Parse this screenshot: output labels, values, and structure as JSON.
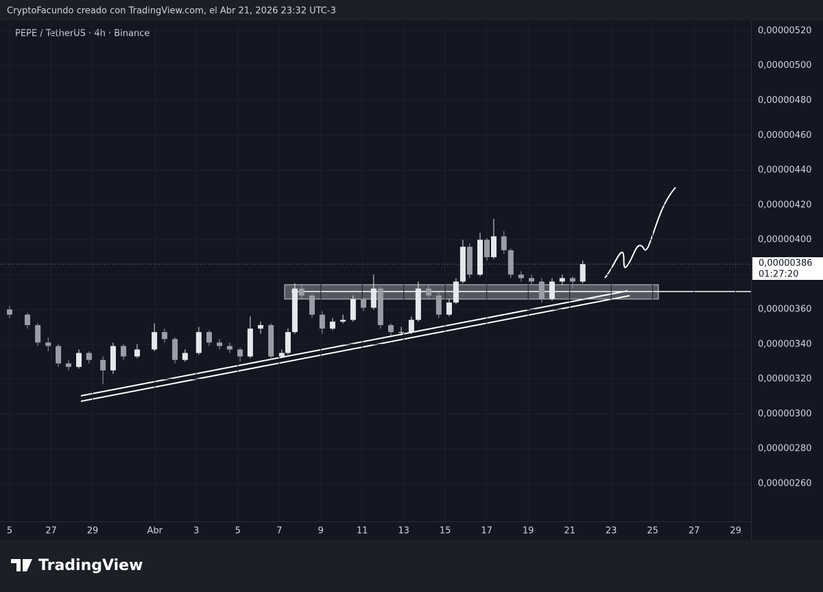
{
  "header": "CryptoFacundo creado con TradingView.com, el Abr 21, 2026 23:32 UTC-3",
  "brand": "TradingView",
  "chart_data": {
    "type": "candlestick",
    "title": "PEPE / TetherUS · 4h · Binance",
    "x": [
      0.0,
      0.86,
      1.36,
      1.86,
      2.35,
      2.84,
      3.34,
      3.83,
      4.5,
      4.99,
      5.49,
      6.15,
      6.98,
      7.47,
      7.97,
      8.46,
      9.12,
      9.62,
      10.12,
      10.61,
      11.11,
      11.6,
      12.1,
      12.6,
      13.12,
      13.42,
      13.75,
      14.08,
      14.58,
      15.07,
      15.57,
      16.07,
      16.56,
      17.06,
      17.55,
      17.88,
      18.38,
      18.88,
      19.37,
      19.7,
      20.2,
      20.69,
      21.19,
      21.52,
      21.85,
      22.18,
      22.68,
      23.01,
      23.34,
      23.83,
      24.16,
      24.66,
      25.16,
      25.65,
      26.15,
      26.64,
      27.14,
      27.63
    ],
    "open": [
      3.6e-06,
      3.57e-06,
      3.51e-06,
      3.41e-06,
      3.39e-06,
      3.29e-06,
      3.27e-06,
      3.35e-06,
      3.31e-06,
      3.25e-06,
      3.39e-06,
      3.33e-06,
      3.37e-06,
      3.47e-06,
      3.43e-06,
      3.31e-06,
      3.35e-06,
      3.47e-06,
      3.41e-06,
      3.39e-06,
      3.37e-06,
      3.33e-06,
      3.49e-06,
      3.51e-06,
      3.33e-06,
      3.35e-06,
      3.47e-06,
      3.72e-06,
      3.68e-06,
      3.57e-06,
      3.49e-06,
      3.53e-06,
      3.54e-06,
      3.66e-06,
      3.61e-06,
      3.72e-06,
      3.51e-06,
      3.47e-06,
      3.47e-06,
      3.54e-06,
      3.72e-06,
      3.68e-06,
      3.57e-06,
      3.64e-06,
      3.76e-06,
      3.96e-06,
      3.8e-06,
      4e-06,
      3.9e-06,
      4.02e-06,
      3.94e-06,
      3.8e-06,
      3.78e-06,
      3.76e-06,
      3.66e-06,
      3.76e-06,
      3.78e-06,
      3.76e-06
    ],
    "high": [
      3.62e-06,
      3.58e-06,
      3.52e-06,
      3.44e-06,
      3.4e-06,
      3.31e-06,
      3.37e-06,
      3.36e-06,
      3.33e-06,
      3.41e-06,
      3.4e-06,
      3.4e-06,
      3.52e-06,
      3.49e-06,
      3.44e-06,
      3.37e-06,
      3.5e-06,
      3.48e-06,
      3.43e-06,
      3.41e-06,
      3.38e-06,
      3.56e-06,
      3.53e-06,
      3.52e-06,
      3.37e-06,
      3.49e-06,
      3.75e-06,
      3.74e-06,
      3.69e-06,
      3.59e-06,
      3.55e-06,
      3.57e-06,
      3.68e-06,
      3.67e-06,
      3.8e-06,
      3.73e-06,
      3.52e-06,
      3.5e-06,
      3.56e-06,
      3.76e-06,
      3.74e-06,
      3.7e-06,
      3.66e-06,
      3.78e-06,
      4e-06,
      3.98e-06,
      4.04e-06,
      4.01e-06,
      4.12e-06,
      4.05e-06,
      3.95e-06,
      3.82e-06,
      3.8e-06,
      3.78e-06,
      3.78e-06,
      3.8e-06,
      3.79e-06,
      3.88e-06
    ],
    "low": [
      3.55e-06,
      3.49e-06,
      3.39e-06,
      3.36e-06,
      3.27e-06,
      3.25e-06,
      3.26e-06,
      3.29e-06,
      3.17e-06,
      3.23e-06,
      3.31e-06,
      3.32e-06,
      3.36e-06,
      3.41e-06,
      3.29e-06,
      3.3e-06,
      3.34e-06,
      3.39e-06,
      3.37e-06,
      3.35e-06,
      3.3e-06,
      3.32e-06,
      3.46e-06,
      3.31e-06,
      3.32e-06,
      3.34e-06,
      3.46e-06,
      3.66e-06,
      3.55e-06,
      3.46e-06,
      3.48e-06,
      3.52e-06,
      3.53e-06,
      3.59e-06,
      3.6e-06,
      3.49e-06,
      3.45e-06,
      3.45e-06,
      3.46e-06,
      3.53e-06,
      3.66e-06,
      3.55e-06,
      3.56e-06,
      3.63e-06,
      3.75e-06,
      3.78e-06,
      3.79e-06,
      3.88e-06,
      3.89e-06,
      3.92e-06,
      3.78e-06,
      3.76e-06,
      3.74e-06,
      3.64e-06,
      3.65e-06,
      3.74e-06,
      3.72e-06,
      3.75e-06
    ],
    "close": [
      3.57e-06,
      3.51e-06,
      3.41e-06,
      3.39e-06,
      3.29e-06,
      3.27e-06,
      3.35e-06,
      3.31e-06,
      3.25e-06,
      3.39e-06,
      3.33e-06,
      3.37e-06,
      3.47e-06,
      3.43e-06,
      3.31e-06,
      3.35e-06,
      3.47e-06,
      3.41e-06,
      3.39e-06,
      3.37e-06,
      3.33e-06,
      3.49e-06,
      3.51e-06,
      3.33e-06,
      3.35e-06,
      3.47e-06,
      3.72e-06,
      3.68e-06,
      3.57e-06,
      3.49e-06,
      3.53e-06,
      3.54e-06,
      3.66e-06,
      3.61e-06,
      3.72e-06,
      3.51e-06,
      3.47e-06,
      3.47e-06,
      3.54e-06,
      3.72e-06,
      3.68e-06,
      3.57e-06,
      3.64e-06,
      3.76e-06,
      3.96e-06,
      3.8e-06,
      4e-06,
      3.9e-06,
      4.02e-06,
      3.94e-06,
      3.8e-06,
      3.78e-06,
      3.76e-06,
      3.66e-06,
      3.76e-06,
      3.78e-06,
      3.76e-06,
      3.86e-06
    ],
    "up_color": "#e6e8ee",
    "down_color": "#9a9da6",
    "current_price": {
      "value": 3.86e-06,
      "label": "0,00000386"
    },
    "countdown": "01:27:20",
    "xlim": [
      -0.463,
      35.74
    ],
    "xticks": [
      {
        "value": 0,
        "label": "5"
      },
      {
        "value": 2,
        "label": "27"
      },
      {
        "value": 4,
        "label": "29"
      },
      {
        "value": 7,
        "label": "Abr"
      },
      {
        "value": 9,
        "label": "3"
      },
      {
        "value": 11,
        "label": "5"
      },
      {
        "value": 13,
        "label": "7"
      },
      {
        "value": 15,
        "label": "9"
      },
      {
        "value": 17,
        "label": "11"
      },
      {
        "value": 19,
        "label": "13"
      },
      {
        "value": 21,
        "label": "15"
      },
      {
        "value": 23,
        "label": "17"
      },
      {
        "value": 25,
        "label": "19"
      },
      {
        "value": 27,
        "label": "21"
      },
      {
        "value": 29,
        "label": "23"
      },
      {
        "value": 31,
        "label": "25"
      },
      {
        "value": 33,
        "label": "27"
      },
      {
        "value": 35,
        "label": "29"
      }
    ],
    "ylim": [
      2.383e-06,
      5.259e-06
    ],
    "yticks": [
      {
        "value": 5.2e-06,
        "label": "0,00000520"
      },
      {
        "value": 5e-06,
        "label": "0,00000500"
      },
      {
        "value": 4.8e-06,
        "label": "0,00000480"
      },
      {
        "value": 4.6e-06,
        "label": "0,00000460"
      },
      {
        "value": 4.4e-06,
        "label": "0,00000440"
      },
      {
        "value": 4.2e-06,
        "label": "0,00000420"
      },
      {
        "value": 4e-06,
        "label": "0,00000400"
      },
      {
        "value": 3.8e-06,
        "label": "0,00000380"
      },
      {
        "value": 3.6e-06,
        "label": "0,00000360"
      },
      {
        "value": 3.4e-06,
        "label": "0,00000340"
      },
      {
        "value": 3.2e-06,
        "label": "0,00000320"
      },
      {
        "value": 3e-06,
        "label": "0,00000300"
      },
      {
        "value": 2.8e-06,
        "label": "0,00000280"
      },
      {
        "value": 2.6e-06,
        "label": "0,00000260"
      }
    ]
  }
}
